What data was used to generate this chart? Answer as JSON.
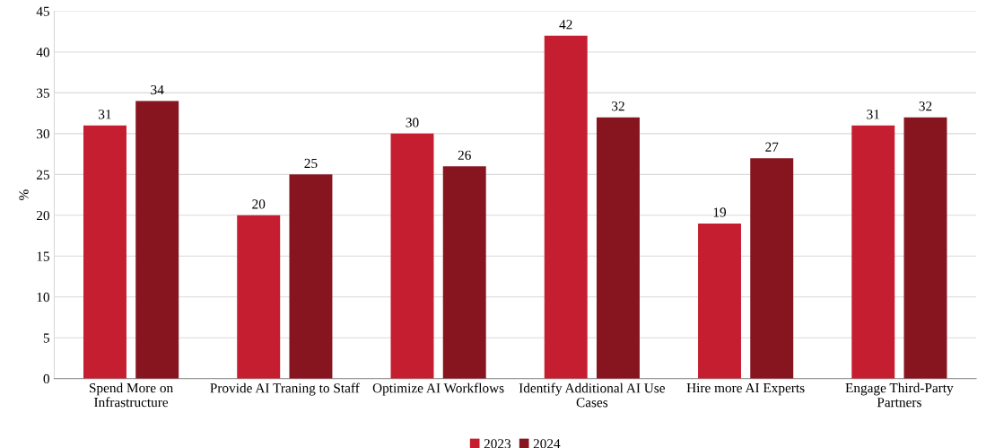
{
  "chart_data": {
    "type": "bar",
    "ylabel": "%",
    "categories": [
      "Spend More on\nInfrastructure",
      "Provide AI Traning to Staff",
      "Optimize AI Workflows",
      "Identify Additional AI Use\nCases",
      "Hire more AI Experts",
      "Engage Third-Party\nPartners"
    ],
    "series": [
      {
        "name": "2023",
        "color": "#c41e30",
        "values": [
          31,
          20,
          30,
          42,
          19,
          31
        ]
      },
      {
        "name": "2024",
        "color": "#861520",
        "values": [
          34,
          25,
          26,
          32,
          27,
          32
        ]
      }
    ],
    "ylim": [
      0,
      45
    ],
    "yticks": [
      0,
      5,
      10,
      15,
      20,
      25,
      30,
      35,
      40,
      45
    ],
    "grid": "y",
    "legend": "bottom",
    "data_labels": true
  }
}
